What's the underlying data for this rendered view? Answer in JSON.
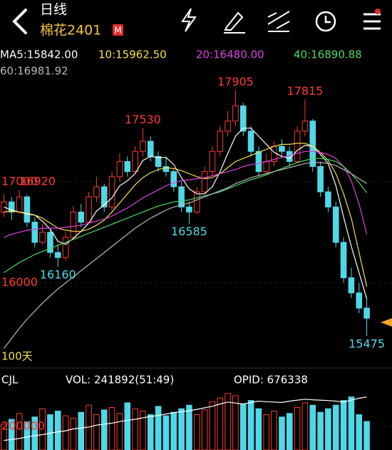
{
  "header": {
    "title": "日线",
    "symbol": "棉花2401",
    "badge": "M"
  },
  "chart_data": {
    "type": "candlestick",
    "up_color": "#ff3b30",
    "down_color": "#4fd8e8",
    "ylim": [
      15200,
      17965
    ],
    "yticks": [
      16000,
      17000
    ],
    "grid": true,
    "ohlc": [
      [
        16700,
        16880,
        16650,
        16800
      ],
      [
        16800,
        16850,
        16620,
        16700
      ],
      [
        16700,
        16920,
        16680,
        16850
      ],
      [
        16850,
        16870,
        16550,
        16600
      ],
      [
        16600,
        16650,
        16350,
        16400
      ],
      [
        16400,
        16580,
        16380,
        16500
      ],
      [
        16500,
        16520,
        16250,
        16300
      ],
      [
        16300,
        16380,
        16160,
        16250
      ],
      [
        16250,
        16500,
        16220,
        16450
      ],
      [
        16450,
        16760,
        16420,
        16700
      ],
      [
        16700,
        16780,
        16550,
        16600
      ],
      [
        16600,
        16900,
        16580,
        16850
      ],
      [
        16850,
        17050,
        16800,
        16950
      ],
      [
        16950,
        16980,
        16700,
        16750
      ],
      [
        16750,
        17100,
        16720,
        17050
      ],
      [
        17050,
        17280,
        17000,
        17200
      ],
      [
        17200,
        17250,
        17050,
        17100
      ],
      [
        17100,
        17350,
        17080,
        17300
      ],
      [
        17300,
        17530,
        17250,
        17400
      ],
      [
        17400,
        17450,
        17200,
        17250
      ],
      [
        17250,
        17300,
        17100,
        17150
      ],
      [
        17150,
        17250,
        17050,
        17100
      ],
      [
        17100,
        17120,
        16900,
        16950
      ],
      [
        16950,
        17000,
        16700,
        16750
      ],
      [
        16750,
        16800,
        16585,
        16700
      ],
      [
        16700,
        16950,
        16680,
        16900
      ],
      [
        16900,
        17150,
        16880,
        17100
      ],
      [
        17100,
        17350,
        17050,
        17300
      ],
      [
        17300,
        17550,
        17250,
        17500
      ],
      [
        17500,
        17700,
        17450,
        17600
      ],
      [
        17600,
        17905,
        17550,
        17750
      ],
      [
        17750,
        17780,
        17450,
        17500
      ],
      [
        17500,
        17550,
        17250,
        17300
      ],
      [
        17300,
        17350,
        17050,
        17100
      ],
      [
        17100,
        17280,
        17080,
        17200
      ],
      [
        17200,
        17400,
        17150,
        17350
      ],
      [
        17350,
        17420,
        17250,
        17300
      ],
      [
        17300,
        17350,
        17150,
        17200
      ],
      [
        17200,
        17550,
        17180,
        17500
      ],
      [
        17500,
        17815,
        17450,
        17600
      ],
      [
        17600,
        17620,
        17100,
        17150
      ],
      [
        17150,
        17200,
        16850,
        16900
      ],
      [
        16900,
        16950,
        16700,
        16750
      ],
      [
        16750,
        16800,
        16350,
        16400
      ],
      [
        16400,
        16450,
        16000,
        16050
      ],
      [
        16050,
        16150,
        15850,
        15900
      ],
      [
        15900,
        16000,
        15700,
        15750
      ],
      [
        15750,
        15850,
        15475,
        15650
      ]
    ],
    "ma_series": [
      {
        "label": "MA5:15842.00",
        "color": "#ffffff",
        "values": [
          16750,
          16720,
          16700,
          16680,
          16670,
          16610,
          16530,
          16410,
          16380,
          16440,
          16510,
          16590,
          16710,
          16770,
          16840,
          16960,
          17010,
          17080,
          17210,
          17250,
          17240,
          17240,
          17170,
          17040,
          16930,
          16880,
          16880,
          16950,
          17100,
          17280,
          17450,
          17530,
          17530,
          17450,
          17370,
          17290,
          17250,
          17230,
          17310,
          17360,
          17350,
          17270,
          17180,
          16960,
          16650,
          16360,
          16100,
          15842
        ]
      },
      {
        "label": "10:15962.50",
        "color": "#f5e04a",
        "values": [
          16700,
          16710,
          16700,
          16690,
          16670,
          16640,
          16590,
          16540,
          16520,
          16510,
          16510,
          16530,
          16570,
          16620,
          16700,
          16790,
          16880,
          16970,
          17040,
          17090,
          17120,
          17140,
          17130,
          17110,
          17080,
          17050,
          17030,
          17040,
          17080,
          17140,
          17200,
          17230,
          17260,
          17290,
          17320,
          17350,
          17370,
          17370,
          17380,
          17380,
          17350,
          17290,
          17210,
          17080,
          16880,
          16640,
          16300,
          15962.5
        ]
      },
      {
        "label": "20:16480.00",
        "color": "#e040e0",
        "values": [
          16450,
          16480,
          16500,
          16520,
          16530,
          16540,
          16540,
          16540,
          16550,
          16560,
          16570,
          16590,
          16610,
          16630,
          16660,
          16700,
          16740,
          16790,
          16840,
          16880,
          16920,
          16960,
          16990,
          17010,
          17020,
          17030,
          17040,
          17060,
          17080,
          17100,
          17120,
          17150,
          17170,
          17180,
          17200,
          17220,
          17240,
          17260,
          17280,
          17300,
          17300,
          17290,
          17270,
          17230,
          17150,
          17010,
          16780,
          16480
        ]
      },
      {
        "label": "40:16890.88",
        "color": "#4cd964",
        "values": [
          16100,
          16150,
          16200,
          16240,
          16280,
          16310,
          16340,
          16370,
          16400,
          16430,
          16460,
          16490,
          16520,
          16550,
          16580,
          16610,
          16640,
          16670,
          16700,
          16730,
          16760,
          16780,
          16800,
          16810,
          16820,
          16840,
          16860,
          16880,
          16900,
          16930,
          16960,
          16990,
          17020,
          17040,
          17070,
          17100,
          17130,
          17160,
          17190,
          17210,
          17230,
          17230,
          17220,
          17200,
          17150,
          17080,
          16990,
          16890.88
        ]
      },
      {
        "label": "60:16981.92",
        "color": "#b8b8b8",
        "values": [
          15350,
          15450,
          15550,
          15640,
          15720,
          15800,
          15870,
          15940,
          16000,
          16060,
          16120,
          16180,
          16240,
          16300,
          16360,
          16420,
          16480,
          16540,
          16590,
          16640,
          16680,
          16720,
          16750,
          16770,
          16790,
          16820,
          16850,
          16880,
          16910,
          16940,
          16980,
          17010,
          17040,
          17060,
          17080,
          17100,
          17120,
          17140,
          17160,
          17180,
          17190,
          17190,
          17180,
          17160,
          17120,
          17080,
          17030,
          16981.92
        ]
      }
    ],
    "annotations": [
      "17905",
      "17530",
      "16920",
      "16585",
      "16160",
      "17815",
      "15475"
    ],
    "period_label": "100天",
    "volume": {
      "title": "CJL",
      "vol_label": "VOL: 241892(51:49)",
      "opid_label": "OPID: 676338",
      "ylim": [
        0,
        520000
      ],
      "yticks": [
        200000
      ],
      "values": [
        220000,
        260000,
        310000,
        240000,
        280000,
        350000,
        300000,
        330000,
        290000,
        270000,
        320000,
        380000,
        300000,
        340000,
        360000,
        310000,
        400000,
        350000,
        330000,
        300000,
        370000,
        290000,
        320000,
        350000,
        380000,
        300000,
        340000,
        410000,
        440000,
        480000,
        460000,
        390000,
        420000,
        350000,
        300000,
        330000,
        280000,
        310000,
        360000,
        400000,
        380000,
        320000,
        350000,
        380000,
        420000,
        450000,
        300000,
        241892
      ],
      "opid": [
        450000,
        455000,
        460000,
        468000,
        475000,
        480000,
        488000,
        495000,
        500000,
        510000,
        515000,
        520000,
        530000,
        535000,
        540000,
        548000,
        555000,
        560000,
        568000,
        575000,
        580000,
        588000,
        595000,
        600000,
        605000,
        612000,
        620000,
        628000,
        640000,
        650000,
        645000,
        640000,
        648000,
        655000,
        652000,
        650000,
        648000,
        655000,
        660000,
        665000,
        662000,
        660000,
        658000,
        655000,
        650000,
        660000,
        670000,
        676338
      ],
      "y2lim": [
        400000,
        720000
      ],
      "opid_color": "#ffffff"
    }
  }
}
